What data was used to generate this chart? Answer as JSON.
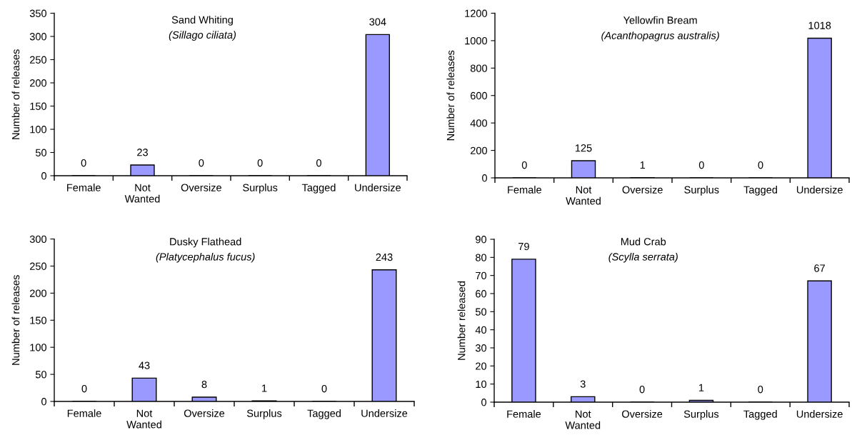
{
  "chart_data": [
    {
      "type": "bar",
      "title": "Sand Whiting",
      "subtitle": "(Sillago ciliata)",
      "ylabel": "Number of releases",
      "categories": [
        "Female",
        "Not Wanted",
        "Oversize",
        "Surplus",
        "Tagged",
        "Undersize"
      ],
      "values": [
        0,
        23,
        0,
        0,
        0,
        304
      ],
      "color": "#9999ff",
      "ylim": [
        0,
        350
      ],
      "yticks": [
        0,
        50,
        100,
        150,
        200,
        250,
        300,
        350
      ],
      "data_labels": true
    },
    {
      "type": "bar",
      "title": "Yellowfin Bream",
      "subtitle": "(Acanthopagrus australis)",
      "ylabel": "Number of releases",
      "categories": [
        "Female",
        "Not Wanted",
        "Oversize",
        "Surplus",
        "Tagged",
        "Undersize"
      ],
      "values": [
        0,
        125,
        1,
        0,
        0,
        1018
      ],
      "color": "#9999ff",
      "ylim": [
        0,
        1200
      ],
      "yticks": [
        0,
        200,
        400,
        600,
        800,
        1000,
        1200
      ],
      "data_labels": true
    },
    {
      "type": "bar",
      "title": "Dusky Flathead",
      "subtitle": "(Platycephalus fucus)",
      "ylabel": "Number of releases",
      "categories": [
        "Female",
        "Not Wanted",
        "Oversize",
        "Surplus",
        "Tagged",
        "Undersize"
      ],
      "values": [
        0,
        43,
        8,
        1,
        0,
        243
      ],
      "color": "#9999ff",
      "ylim": [
        0,
        300
      ],
      "yticks": [
        0,
        50,
        100,
        150,
        200,
        250,
        300
      ],
      "data_labels": true
    },
    {
      "type": "bar",
      "title": "Mud Crab",
      "subtitle": "(Scylla serrata)",
      "ylabel": "Number released",
      "categories": [
        "Female",
        "Not Wanted",
        "Oversize",
        "Surplus",
        "Tagged",
        "Undersize"
      ],
      "values": [
        79,
        3,
        0,
        1,
        0,
        67
      ],
      "color": "#9999ff",
      "ylim": [
        0,
        90
      ],
      "yticks": [
        0,
        10,
        20,
        30,
        40,
        50,
        60,
        70,
        80,
        90
      ],
      "data_labels": true
    }
  ]
}
